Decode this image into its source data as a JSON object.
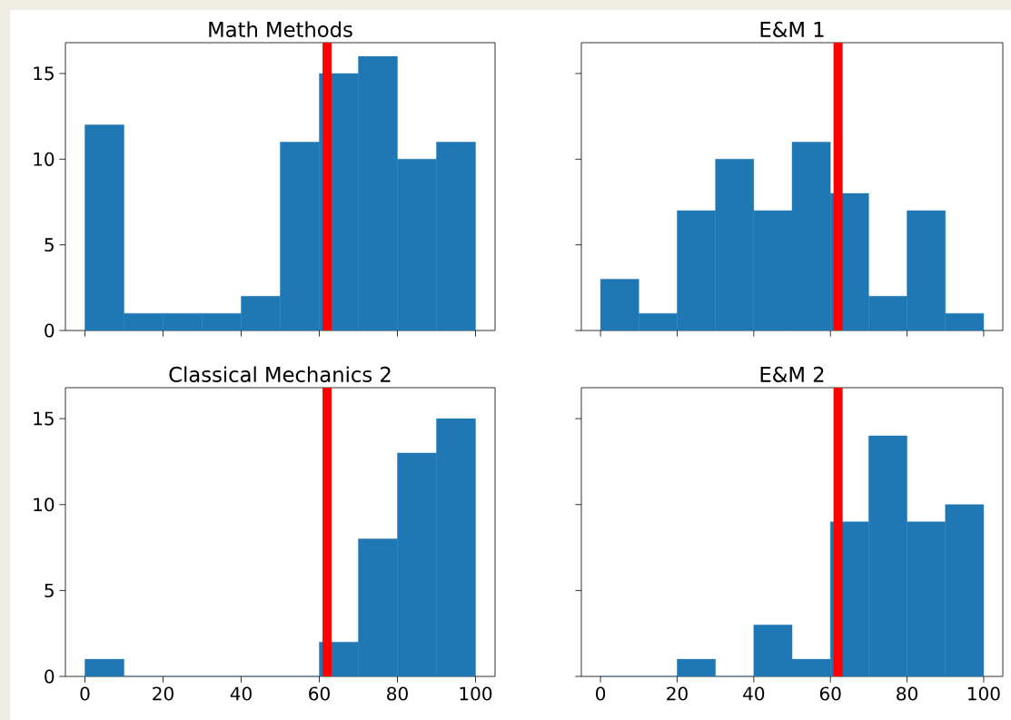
{
  "chart_data": [
    {
      "type": "histogram",
      "title": "Math Methods",
      "bins": [
        0,
        10,
        20,
        30,
        40,
        50,
        60,
        70,
        80,
        90,
        100
      ],
      "values": [
        12,
        1,
        1,
        1,
        2,
        11,
        15,
        16,
        10,
        11
      ],
      "color": "#1f77b4",
      "xlim": [
        -5,
        105
      ],
      "ylim": [
        0,
        16.8
      ],
      "xticks": [
        0,
        20,
        40,
        60,
        80,
        100
      ],
      "yticks": [
        0,
        5,
        10,
        15
      ],
      "ref_lines": [
        {
          "axis": "x",
          "value": 62,
          "color": "#ff0000"
        }
      ],
      "tick_labels": "y"
    },
    {
      "type": "histogram",
      "title": "E&M 1",
      "bins": [
        0,
        10,
        20,
        30,
        40,
        50,
        60,
        70,
        80,
        90,
        100
      ],
      "values": [
        3,
        1,
        7,
        10,
        7,
        11,
        8,
        2,
        7,
        1
      ],
      "color": "#1f77b4",
      "xlim": [
        -5,
        105
      ],
      "ylim": [
        0,
        16.8
      ],
      "xticks": [
        0,
        20,
        40,
        60,
        80,
        100
      ],
      "yticks": [
        0,
        5,
        10,
        15
      ],
      "ref_lines": [
        {
          "axis": "x",
          "value": 62,
          "color": "#ff0000"
        }
      ],
      "tick_labels": false
    },
    {
      "type": "histogram",
      "title": "Classical Mechanics 2",
      "bins": [
        0,
        10,
        20,
        30,
        40,
        50,
        60,
        70,
        80,
        90,
        100
      ],
      "values": [
        1,
        0,
        0,
        0,
        0,
        0,
        2,
        8,
        13,
        15
      ],
      "color": "#1f77b4",
      "xlim": [
        -5,
        105
      ],
      "ylim": [
        0,
        16.8
      ],
      "xticks": [
        0,
        20,
        40,
        60,
        80,
        100
      ],
      "yticks": [
        0,
        5,
        10,
        15
      ],
      "ref_lines": [
        {
          "axis": "x",
          "value": 62,
          "color": "#ff0000"
        }
      ]
    },
    {
      "type": "histogram",
      "title": "E&M 2",
      "bins": [
        0,
        10,
        20,
        30,
        40,
        50,
        60,
        70,
        80,
        90,
        100
      ],
      "values": [
        0,
        0,
        1,
        0,
        3,
        1,
        9,
        14,
        9,
        10
      ],
      "color": "#1f77b4",
      "xlim": [
        -5,
        105
      ],
      "ylim": [
        0,
        16.8
      ],
      "xticks": [
        0,
        20,
        40,
        60,
        80,
        100
      ],
      "yticks": [
        0,
        5,
        10,
        15
      ],
      "ref_lines": [
        {
          "axis": "x",
          "value": 62,
          "color": "#ff0000"
        }
      ],
      "tick_labels": "x"
    }
  ]
}
